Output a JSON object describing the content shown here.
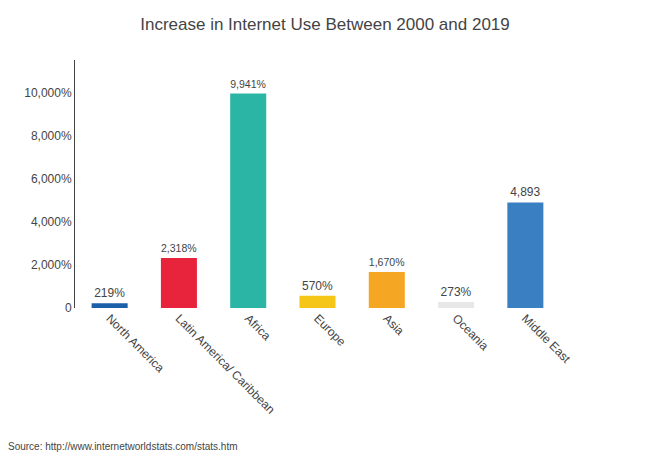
{
  "chart_data": {
    "type": "bar",
    "title": "Increase in Internet Use Between 2000 and 2019",
    "categories": [
      "North America",
      "Latin America/ Caribbean",
      "Africa",
      "Europe",
      "Asia",
      "Oceania",
      "Middle East"
    ],
    "values": [
      219,
      2318,
      9941,
      570,
      1670,
      273,
      4893
    ],
    "value_labels": [
      "219%",
      "2,318%",
      "9,941%",
      "570%",
      "1,670%",
      "273%",
      "4,893"
    ],
    "data_labels": true,
    "colors": [
      "#1a5fa8",
      "#e8243c",
      "#2ab5a5",
      "#f5c518",
      "#f5a623",
      "#e8e8e8",
      "#3a7fc1"
    ],
    "ylim": [
      0,
      11500
    ],
    "yticks": [
      0,
      {
        "value": 2000,
        "label": "2,000%"
      },
      {
        "value": 4000,
        "label": "4,000%"
      },
      {
        "value": 6000,
        "label": "6,000%"
      },
      {
        "value": 8000,
        "label": "8,000%"
      },
      {
        "value": 10000,
        "label": "10,000%"
      }
    ],
    "grid": false,
    "annotations": [
      "Source: http://www.internetworldstats.com/stats.htm"
    ]
  }
}
